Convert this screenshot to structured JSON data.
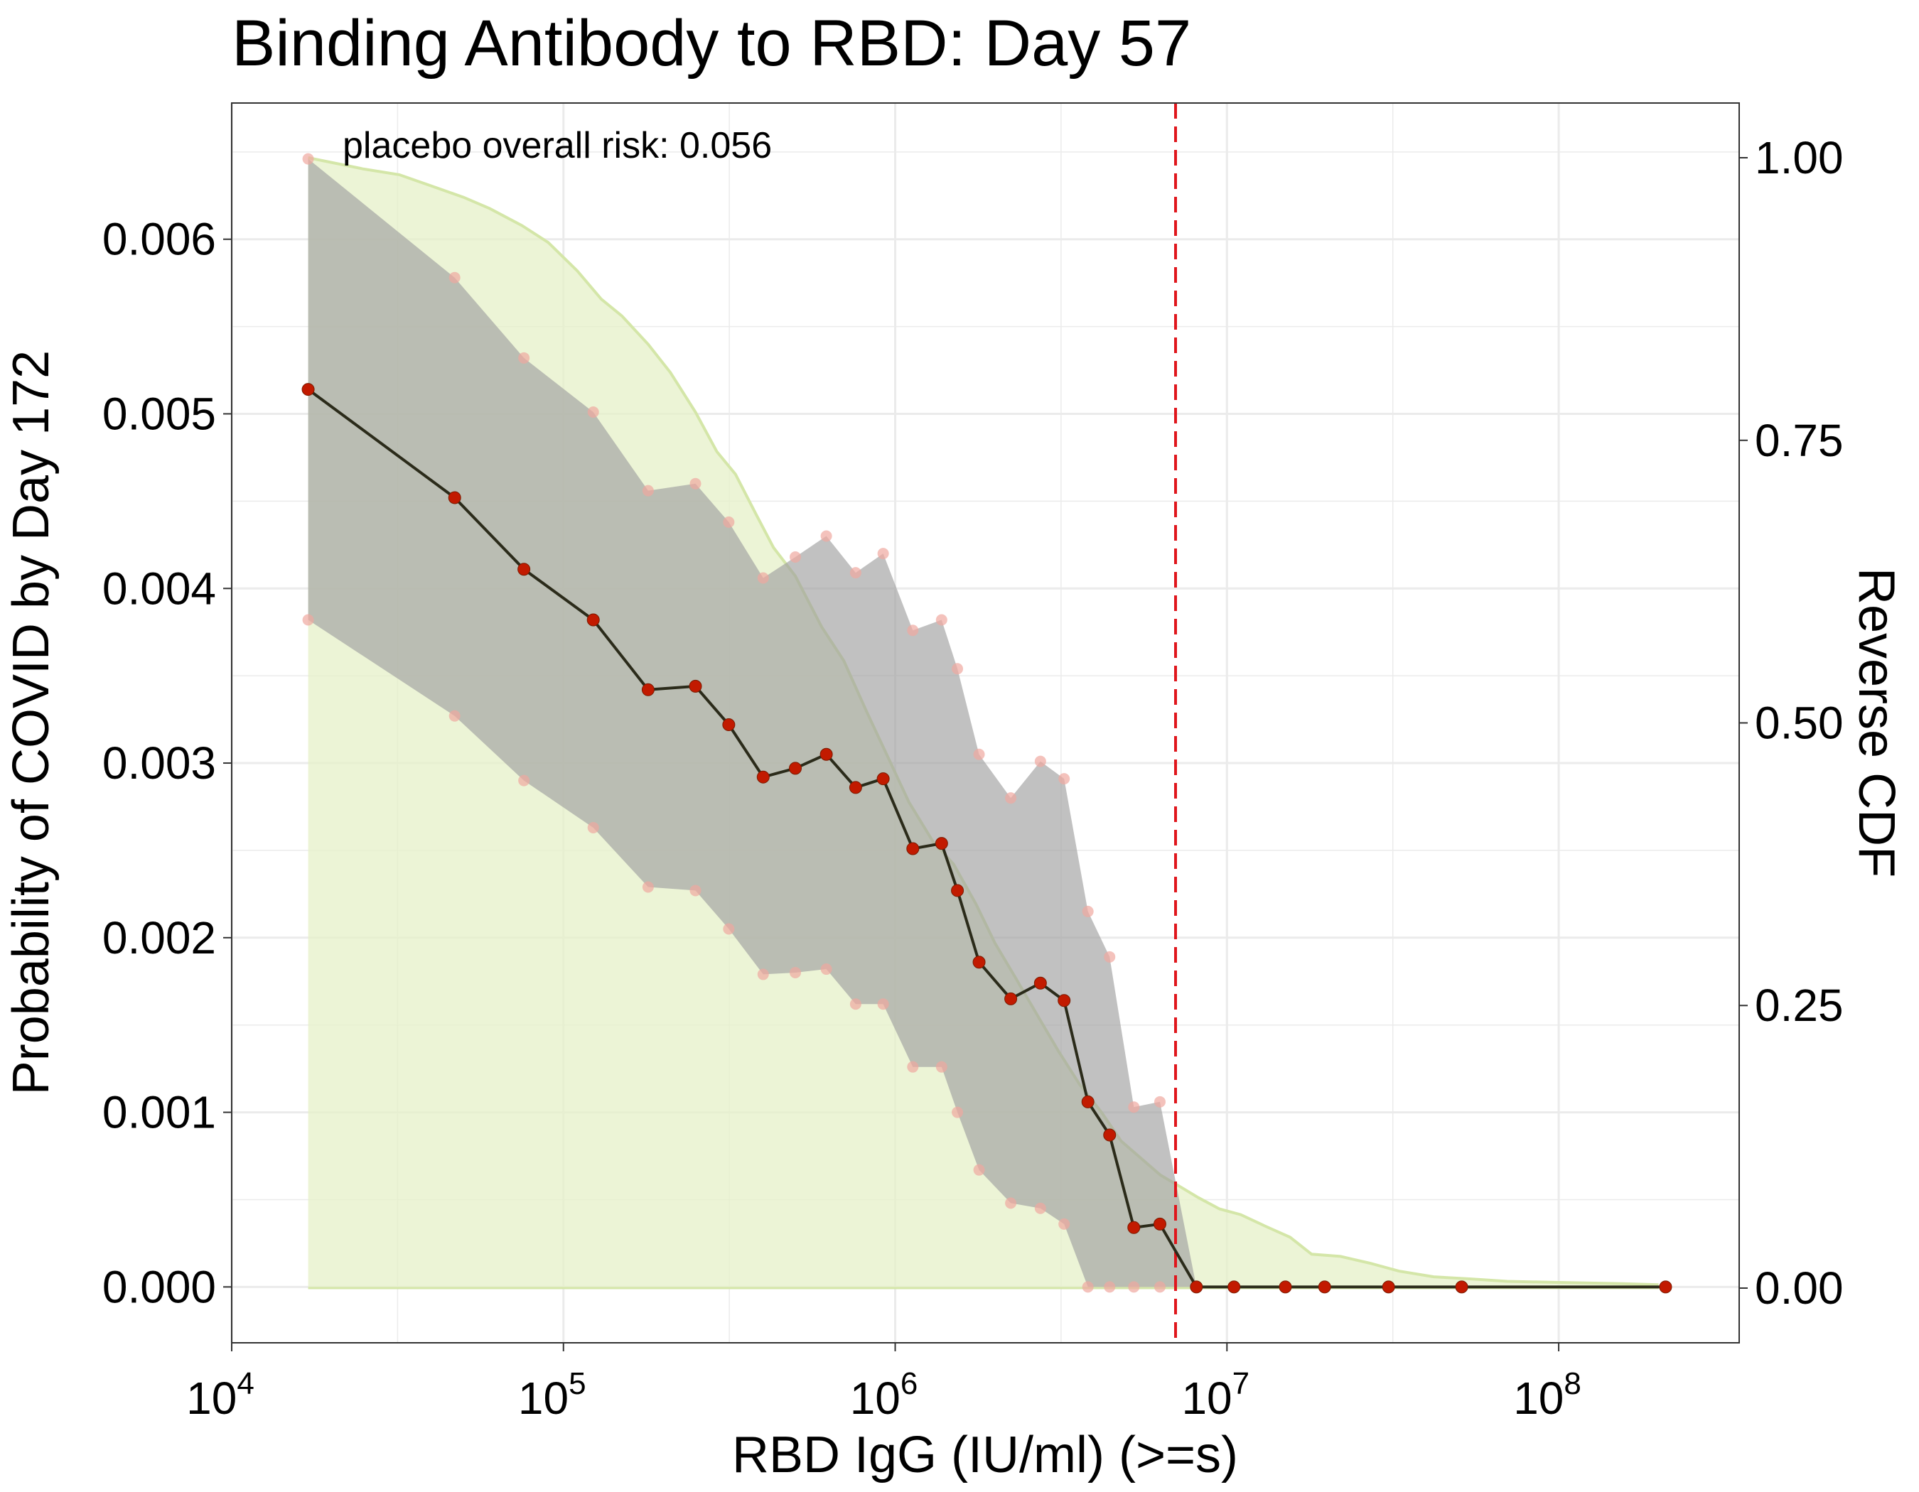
{
  "chart_data": {
    "type": "line",
    "title": "Binding Antibody to RBD: Day 57",
    "xlabel": "RBD IgG (IU/ml) (>=s)",
    "ylabel": "Probability of COVID by Day 172",
    "y2label": "Reverse CDF",
    "annotation": "placebo overall risk: 0.056",
    "x_scale": "log10",
    "xlim": [
      10000,
      350000000
    ],
    "ylim": [
      -0.00032,
      0.00678
    ],
    "y2lim": [
      -0.0484,
      1.0484
    ],
    "x_ticks": [
      {
        "value": 10000,
        "base": "10",
        "exp": "4"
      },
      {
        "value": 100000,
        "base": "10",
        "exp": "5"
      },
      {
        "value": 1000000,
        "base": "10",
        "exp": "6"
      },
      {
        "value": 10000000,
        "base": "10",
        "exp": "7"
      },
      {
        "value": 100000000,
        "base": "10",
        "exp": "8"
      }
    ],
    "y_ticks": [
      "0.000",
      "0.001",
      "0.002",
      "0.003",
      "0.004",
      "0.005",
      "0.006"
    ],
    "y2_ticks": [
      "0.00",
      "0.25",
      "0.50",
      "0.75",
      "1.00"
    ],
    "threshold_x": 7000000,
    "grid": true,
    "colors": {
      "risk_line": "#2b2b1a",
      "risk_point": "#c21a00",
      "ci_point": "#f0a8a0",
      "ci_band": "#a0a0a0",
      "cdf_fill": "#e6f0c8",
      "cdf_line": "#d4e6a8",
      "threshold": "#e0161c",
      "grid": "#ebebeb",
      "panel_border": "#333333"
    },
    "series": [
      {
        "type": "risk",
        "x": [
          17000,
          47000,
          76000,
          123000,
          180000,
          250000,
          315000,
          400000,
          500000,
          620000,
          760000,
          920000,
          1130000,
          1380000,
          1540000,
          1790000,
          2230000,
          2740000,
          3230000,
          3810000,
          4430000,
          5240000,
          6280000,
          8090000,
          10500000,
          15000000,
          19700000,
          30700000,
          51000000,
          210000000
        ],
        "y": [
          0.00514,
          0.00452,
          0.00411,
          0.00382,
          0.00342,
          0.00344,
          0.00322,
          0.00292,
          0.00297,
          0.00305,
          0.00286,
          0.00291,
          0.00251,
          0.00254,
          0.00227,
          0.00186,
          0.00165,
          0.00174,
          0.00164,
          0.00106,
          0.00087,
          0.00034,
          0.00036,
          0.0,
          0.0,
          0.0,
          0.0,
          0.0,
          0.0,
          0.0
        ],
        "upper": [
          0.00646,
          0.00578,
          0.00532,
          0.00501,
          0.00456,
          0.0046,
          0.00438,
          0.00406,
          0.00418,
          0.0043,
          0.00409,
          0.0042,
          0.00376,
          0.00382,
          0.00354,
          0.00305,
          0.0028,
          0.00301,
          0.00291,
          0.00215,
          0.00189,
          0.00103,
          0.00106,
          0.0,
          0.0,
          0.0,
          0.0,
          0.0,
          0.0,
          0.0
        ],
        "lower": [
          0.00382,
          0.00327,
          0.0029,
          0.00263,
          0.00229,
          0.00227,
          0.00205,
          0.00179,
          0.0018,
          0.00182,
          0.00162,
          0.00162,
          0.00126,
          0.00126,
          0.001,
          0.00067,
          0.00048,
          0.00045,
          0.00036,
          0.0,
          0.0,
          0.0,
          0.0,
          0.0,
          0.0,
          0.0,
          0.0,
          0.0,
          0.0,
          0.0
        ]
      },
      {
        "type": "reverse_cdf",
        "x": [
          17000,
          25000,
          32000,
          40000,
          50000,
          60000,
          75000,
          90000,
          110000,
          130000,
          150000,
          180000,
          210000,
          250000,
          290000,
          330000,
          380000,
          430000,
          500000,
          600000,
          700000,
          820000,
          950000,
          1100000,
          1300000,
          1500000,
          1750000,
          2000000,
          2300000,
          2700000,
          3100000,
          3600000,
          4200000,
          4800000,
          5500000,
          6300000,
          7200000,
          8200000,
          9500000,
          11000000,
          13000000,
          15500000,
          18000000,
          22000000,
          27000000,
          33000000,
          42000000,
          55000000,
          70000000,
          100000000,
          150000000,
          200000000
        ],
        "y": [
          1.0,
          0.99,
          0.985,
          0.975,
          0.965,
          0.955,
          0.94,
          0.925,
          0.9,
          0.875,
          0.86,
          0.835,
          0.81,
          0.775,
          0.74,
          0.72,
          0.685,
          0.655,
          0.63,
          0.585,
          0.555,
          0.51,
          0.47,
          0.43,
          0.395,
          0.375,
          0.34,
          0.305,
          0.275,
          0.24,
          0.21,
          0.18,
          0.155,
          0.13,
          0.115,
          0.1,
          0.09,
          0.08,
          0.07,
          0.065,
          0.055,
          0.045,
          0.03,
          0.028,
          0.022,
          0.015,
          0.01,
          0.008,
          0.006,
          0.005,
          0.004,
          0.003
        ]
      }
    ]
  }
}
